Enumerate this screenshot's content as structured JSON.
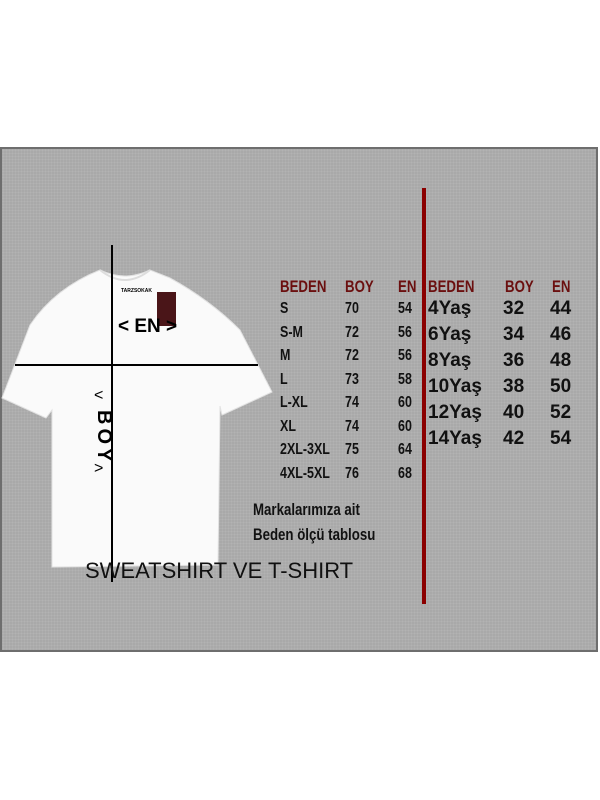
{
  "colors": {
    "panel": "#a9a9a9",
    "header_red": "#6b0f0f",
    "divider_red": "#8b0000",
    "shirt": "#ffffff"
  },
  "shirt": {
    "brand_label": "TARZSOKAK",
    "width_label": "< EN >",
    "length_label": "BOY",
    "length_arrow_top": "<",
    "length_arrow_bottom": ">"
  },
  "adult_table": {
    "headers": [
      "BEDEN",
      "BOY",
      "EN"
    ],
    "rows": [
      [
        "S",
        "70",
        "54"
      ],
      [
        "S-M",
        "72",
        "56"
      ],
      [
        "M",
        "72",
        "56"
      ],
      [
        "L",
        "73",
        "58"
      ],
      [
        "L-XL",
        "74",
        "60"
      ],
      [
        "XL",
        "74",
        "60"
      ],
      [
        "2XL-3XL",
        "75",
        "64"
      ],
      [
        "4XL-5XL",
        "76",
        "68"
      ]
    ]
  },
  "kids_table": {
    "headers": [
      "BEDEN",
      "BOY",
      "EN"
    ],
    "rows": [
      [
        "4Yaş",
        "32",
        "44"
      ],
      [
        "6Yaş",
        "34",
        "46"
      ],
      [
        "8Yaş",
        "36",
        "48"
      ],
      [
        "10Yaş",
        "38",
        "50"
      ],
      [
        "12Yaş",
        "40",
        "52"
      ],
      [
        "14Yaş",
        "42",
        "54"
      ]
    ]
  },
  "note": {
    "line1": "Markalarımıza ait",
    "line2": "Beden ölçü tablosu"
  },
  "footer_title": "SWEATSHIRT VE T-SHIRT"
}
